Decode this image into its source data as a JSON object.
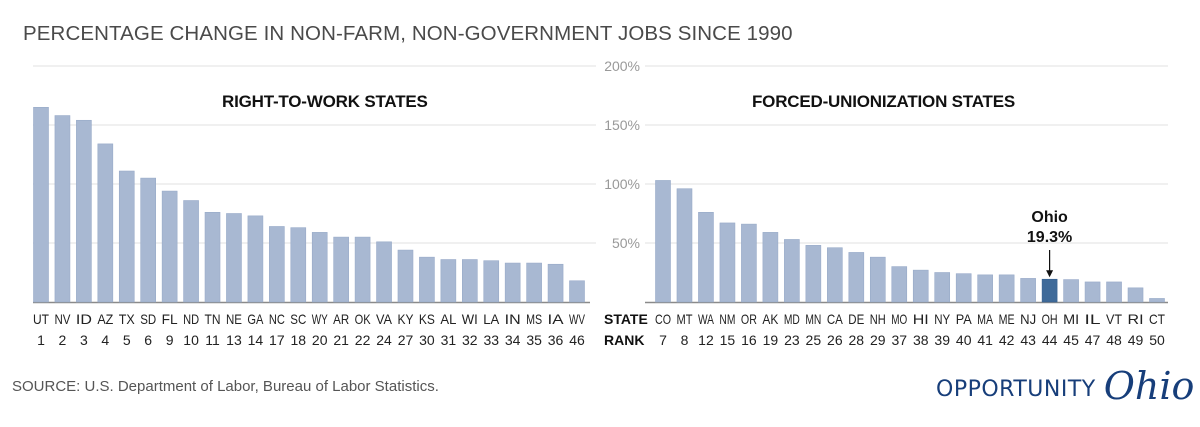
{
  "header": {
    "title": "PERCENTAGE CHANGE IN NON-FARM, NON-GOVERNMENT JOBS SINCE 1990"
  },
  "footer": {
    "source": "SOURCE: U.S. Department of Labor, Bureau of Labor Statistics.",
    "logo_word": "OPPORTUNITY",
    "logo_script": "Ohio"
  },
  "colors": {
    "bar": "#a8b8d2",
    "highlight": "#3f6a99",
    "grid": "#e6e6e6",
    "axis": "#8a8a8a",
    "tick_label": "#999999",
    "logo": "#173e7a"
  },
  "chart_data": [
    {
      "type": "bar",
      "title": "RIGHT-TO-WORK STATES",
      "categories": [
        "UT",
        "NV",
        "ID",
        "AZ",
        "TX",
        "SD",
        "FL",
        "ND",
        "TN",
        "NE",
        "GA",
        "NC",
        "SC",
        "WY",
        "AR",
        "OK",
        "VA",
        "KY",
        "KS",
        "AL",
        "WI",
        "LA",
        "IN",
        "MS",
        "IA",
        "WV"
      ],
      "ranks": [
        "1",
        "2",
        "3",
        "4",
        "5",
        "6",
        "9",
        "10",
        "11",
        "13",
        "14",
        "17",
        "18",
        "20",
        "21",
        "22",
        "24",
        "27",
        "30",
        "31",
        "32",
        "33",
        "34",
        "35",
        "36",
        "46"
      ],
      "values": [
        165,
        158,
        154,
        134,
        111,
        105,
        94,
        86,
        76,
        75,
        73,
        64,
        63,
        59,
        55,
        55,
        51,
        44,
        38,
        36,
        36,
        35,
        33,
        33,
        32,
        18
      ],
      "xlabel": "",
      "ylabel": "",
      "ylim": [
        0,
        200
      ],
      "grid": true
    },
    {
      "type": "bar",
      "title": "FORCED-UNIONIZATION STATES",
      "categories": [
        "CO",
        "MT",
        "WA",
        "NM",
        "OR",
        "AK",
        "MD",
        "MN",
        "CA",
        "DE",
        "NH",
        "MO",
        "HI",
        "NY",
        "PA",
        "MA",
        "ME",
        "NJ",
        "OH",
        "MI",
        "IL",
        "VT",
        "RI",
        "CT"
      ],
      "ranks": [
        "7",
        "8",
        "12",
        "15",
        "16",
        "19",
        "23",
        "25",
        "26",
        "28",
        "29",
        "37",
        "38",
        "39",
        "40",
        "41",
        "42",
        "43",
        "44",
        "45",
        "47",
        "48",
        "49",
        "50"
      ],
      "values": [
        103,
        96,
        76,
        67,
        66,
        59,
        53,
        48,
        46,
        42,
        38,
        30,
        27,
        25,
        24,
        23,
        23,
        20,
        19.3,
        19,
        17,
        17,
        12,
        3
      ],
      "highlight": "OH",
      "annotation": {
        "label": "Ohio",
        "value": "19.3%",
        "target": "OH"
      },
      "xlabel": "",
      "ylabel": "",
      "ylim": [
        0,
        200
      ],
      "grid": true
    }
  ],
  "axis": {
    "yticks": [
      {
        "value": 200,
        "label": "200%"
      },
      {
        "value": 150,
        "label": "150%"
      },
      {
        "value": 100,
        "label": "100%"
      },
      {
        "value": 50,
        "label": "50%"
      }
    ],
    "row_labels": {
      "state": "STATE",
      "rank": "RANK"
    }
  }
}
